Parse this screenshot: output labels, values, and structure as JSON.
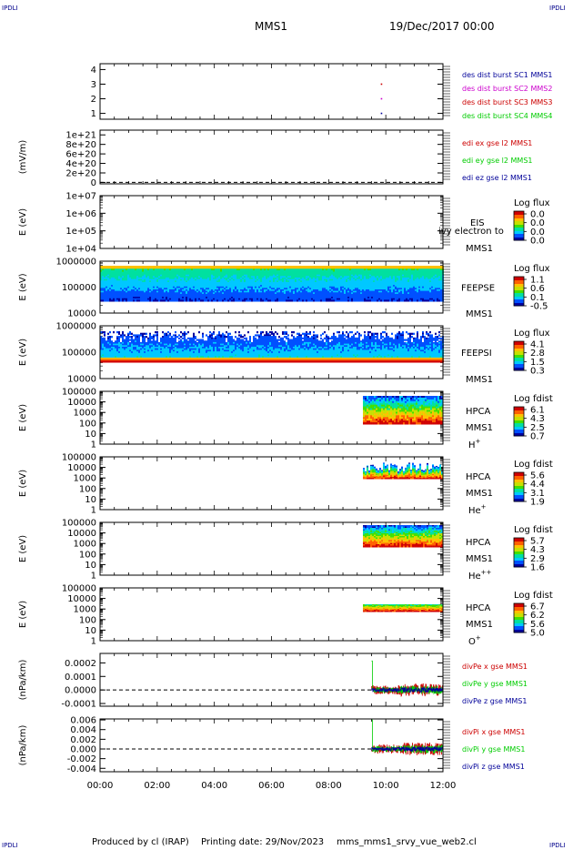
{
  "page": {
    "corner_label": "IPDLI",
    "mission": "MMS1",
    "date": "19/Dec/2017 00:00",
    "footer_producer": "Produced by cl (IRAP)",
    "footer_date": "Printing date: 29/Nov/2023",
    "footer_file": "mms_mms1_srvy_vue_web2.cl"
  },
  "chart_data": [
    {
      "type": "scatter",
      "ylim": [
        0.6,
        4.4
      ],
      "yticks": [
        "1",
        "2",
        "3",
        "4"
      ],
      "series": [
        {
          "name": "des dist burst SC1 MMS1",
          "color": "#000099",
          "points": [
            [
              9.85,
              1.0
            ]
          ]
        },
        {
          "name": "des dist burst SC2 MMS2",
          "color": "#cc00cc",
          "points": [
            [
              9.85,
              2.0
            ]
          ]
        },
        {
          "name": "des dist burst SC3 MMS3",
          "color": "#cc0000",
          "points": [
            [
              9.85,
              3.0
            ]
          ]
        },
        {
          "name": "des dist burst SC4 MMS4",
          "color": "#00cc00",
          "points": []
        }
      ]
    },
    {
      "type": "line",
      "ylabel": "(mV/m)",
      "ylim": [
        -3e+19,
        1.1e+21
      ],
      "yticks": [
        "1e+21",
        "8e+20",
        "6e+20",
        "4e+20",
        "2e+20",
        "0"
      ],
      "zero_line": true,
      "series": [
        {
          "name": "edi ex gse l2 MMS1",
          "color": "#cc0000"
        },
        {
          "name": "edi ey gse l2 MMS1",
          "color": "#00cc00"
        },
        {
          "name": "edi ez gse l2 MMS1",
          "color": "#000099"
        }
      ]
    },
    {
      "type": "heatmap",
      "ylabel": "E (eV)",
      "yscale": "log",
      "yticks": [
        "1e+07",
        "1e+06",
        "1e+05",
        "1e+04"
      ],
      "instrument": "EIS",
      "spacecraft": "MMS1",
      "overlay_text": "ivy electron to",
      "colorbar": {
        "title": "Log flux",
        "ticks": [
          "0.0",
          "0.0",
          "0.0",
          "0.0"
        ]
      }
    },
    {
      "type": "heatmap",
      "ylabel": "E (eV)",
      "yscale": "log",
      "yticks": [
        "1000000",
        "100000",
        "10000"
      ],
      "instrument": "FEEPSE",
      "spacecraft": "MMS1",
      "time_range": [
        0,
        12
      ],
      "colorbar": {
        "title": "Log flux",
        "ticks": [
          "1.1",
          "0.6",
          "0.1",
          "-0.5"
        ]
      }
    },
    {
      "type": "heatmap",
      "ylabel": "E (eV)",
      "yscale": "log",
      "yticks": [
        "1000000",
        "100000",
        "10000"
      ],
      "instrument": "FEEPSI",
      "spacecraft": "MMS1",
      "time_range": [
        0,
        12
      ],
      "colorbar": {
        "title": "Log flux",
        "ticks": [
          "4.1",
          "2.8",
          "1.5",
          "0.3"
        ]
      }
    },
    {
      "type": "heatmap",
      "ylabel": "E (eV)",
      "yscale": "log",
      "yticks": [
        "100000",
        "10000",
        "1000",
        "100",
        "10",
        "1"
      ],
      "instrument": "HPCA",
      "spacecraft": "MMS1",
      "species": "H",
      "species_sup": "+",
      "time_range": [
        9.2,
        12
      ],
      "colorbar": {
        "title": "Log fdist",
        "ticks": [
          "6.1",
          "4.3",
          "2.5",
          "0.7"
        ]
      }
    },
    {
      "type": "heatmap",
      "ylabel": "E (eV)",
      "yscale": "log",
      "yticks": [
        "100000",
        "10000",
        "1000",
        "100",
        "10",
        "1"
      ],
      "instrument": "HPCA",
      "spacecraft": "MMS1",
      "species": "He",
      "species_sup": "+",
      "time_range": [
        9.2,
        12
      ],
      "colorbar": {
        "title": "Log fdist",
        "ticks": [
          "5.6",
          "4.4",
          "3.1",
          "1.9"
        ]
      }
    },
    {
      "type": "heatmap",
      "ylabel": "E (eV)",
      "yscale": "log",
      "yticks": [
        "100000",
        "10000",
        "1000",
        "100",
        "10",
        "1"
      ],
      "instrument": "HPCA",
      "spacecraft": "MMS1",
      "species": "He",
      "species_sup": "++",
      "time_range": [
        9.2,
        12
      ],
      "colorbar": {
        "title": "Log fdist",
        "ticks": [
          "5.7",
          "4.3",
          "2.9",
          "1.6"
        ]
      }
    },
    {
      "type": "heatmap",
      "ylabel": "E (eV)",
      "yscale": "log",
      "yticks": [
        "100000",
        "10000",
        "1000",
        "100",
        "10",
        "1"
      ],
      "instrument": "HPCA",
      "spacecraft": "MMS1",
      "species": "O",
      "species_sup": "+",
      "time_range": [
        9.2,
        12
      ],
      "colorbar": {
        "title": "Log fdist",
        "ticks": [
          "6.7",
          "6.2",
          "5.6",
          "5.0"
        ]
      }
    },
    {
      "type": "line",
      "ylabel": "(nPa/km)",
      "ylim": [
        -0.00012,
        0.00027
      ],
      "yticks": [
        "0.0002",
        "0.0001",
        "0.0000",
        "-0.0001"
      ],
      "zero_line": true,
      "time_range": [
        9.5,
        12
      ],
      "series": [
        {
          "name": "divPe x gse MMS1",
          "color": "#cc0000"
        },
        {
          "name": "divPe y gse MMS1",
          "color": "#00cc00"
        },
        {
          "name": "divPe z gse MMS1",
          "color": "#000099"
        }
      ]
    },
    {
      "type": "line",
      "ylabel": "(nPa/km)",
      "ylim": [
        -0.0047,
        0.0062
      ],
      "yticks": [
        "0.006",
        "0.004",
        "0.002",
        "0.000",
        "-0.002",
        "-0.004"
      ],
      "zero_line": true,
      "time_range": [
        9.5,
        12
      ],
      "series": [
        {
          "name": "divPi x gse MMS1",
          "color": "#cc0000"
        },
        {
          "name": "divPi y gse MMS1",
          "color": "#00cc00"
        },
        {
          "name": "divPi z gse MMS1",
          "color": "#000099"
        }
      ]
    }
  ],
  "x_axis": {
    "range_hours": [
      0,
      12
    ],
    "ticks": [
      "00:00",
      "02:00",
      "04:00",
      "06:00",
      "08:00",
      "10:00",
      "12:00"
    ]
  },
  "colormap": [
    "#0000a0",
    "#0050ff",
    "#00c8ff",
    "#00e0a0",
    "#40e000",
    "#c8e000",
    "#ffc000",
    "#ff6000",
    "#d00000"
  ]
}
